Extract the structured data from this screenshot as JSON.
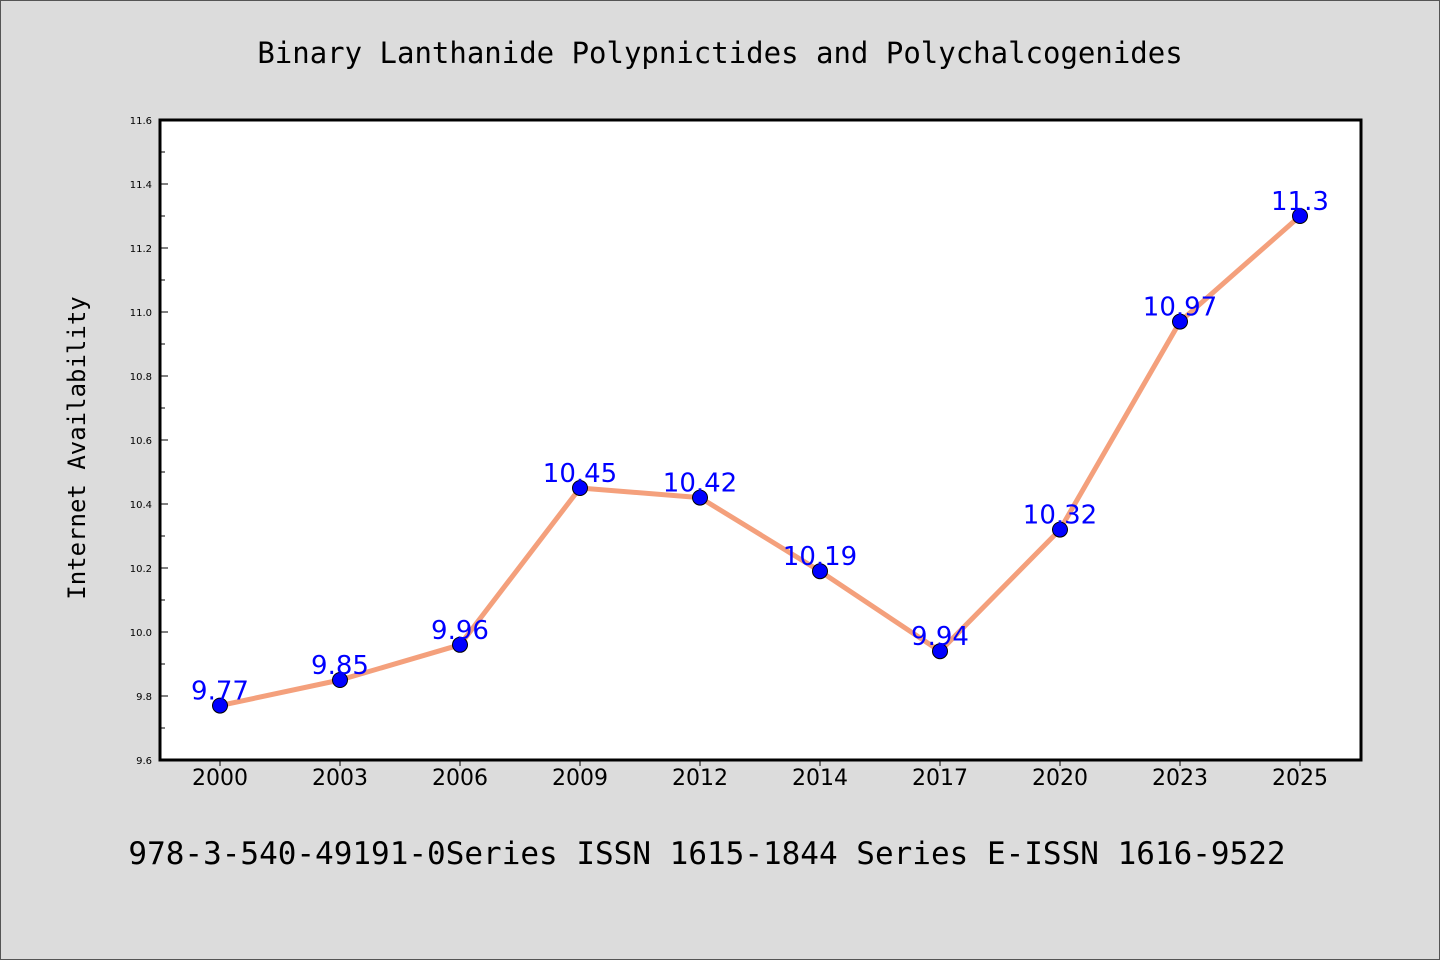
{
  "chart_data": {
    "type": "line",
    "title": "Binary Lanthanide Polypnictides and Polychalcogenides",
    "xlabel": "",
    "ylabel": "Internet Availability",
    "footer": "978-3-540-49191-0Series ISSN 1615-1844 Series E-ISSN 1616-9522",
    "categories": [
      "2000",
      "2003",
      "2006",
      "2009",
      "2012",
      "2014",
      "2017",
      "2020",
      "2023",
      "2025"
    ],
    "values": [
      9.77,
      9.85,
      9.96,
      10.45,
      10.42,
      10.19,
      9.94,
      10.32,
      10.97,
      11.3
    ],
    "value_labels": [
      "9.77",
      "9.85",
      "9.96",
      "10.45",
      "10.42",
      "10.19",
      "9.94",
      "10.32",
      "10.97",
      "11.3"
    ],
    "ylim": [
      9.6,
      11.6
    ],
    "yticks": [
      "9.6",
      "9.8",
      "10.0",
      "10.2",
      "10.4",
      "10.6",
      "10.8",
      "11.0",
      "11.2",
      "11.4",
      "11.6"
    ],
    "grid": false,
    "colors": {
      "line": "#f4a07c",
      "marker": "#0000ff",
      "label": "#0000ff",
      "plot_background": "#ffffff",
      "page_background": "#dcdcdc"
    }
  }
}
